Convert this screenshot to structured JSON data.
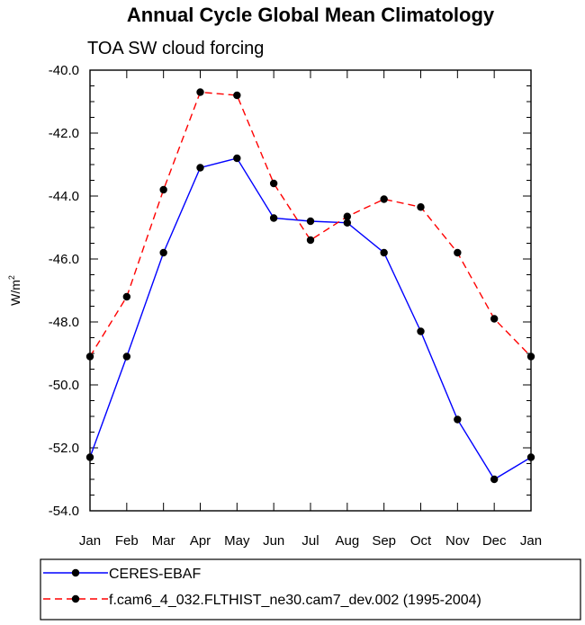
{
  "chart_data": {
    "type": "line",
    "title": "Annual Cycle Global Mean Climatology",
    "subtitle": "TOA SW cloud forcing",
    "ylabel": "W/m",
    "ylabel_sup": "2",
    "xlabel": "",
    "categories": [
      "Jan",
      "Feb",
      "Mar",
      "Apr",
      "May",
      "Jun",
      "Jul",
      "Aug",
      "Sep",
      "Oct",
      "Nov",
      "Dec",
      "Jan"
    ],
    "ylim": [
      -54.0,
      -40.0
    ],
    "yticks": [
      -54.0,
      -52.0,
      -50.0,
      -48.0,
      -46.0,
      -44.0,
      -42.0,
      -40.0
    ],
    "ytick_labels": [
      "-54.0",
      "-52.0",
      "-50.0",
      "-48.0",
      "-46.0",
      "-44.0",
      "-42.0",
      "-40.0"
    ],
    "grid": false,
    "legend_position": "bottom-left, outside plot",
    "series": [
      {
        "name": "CERES-EBAF",
        "color": "#0000ff",
        "line_style": "solid",
        "marker": "filled-circle",
        "values": [
          -52.3,
          -49.1,
          -45.8,
          -43.1,
          -42.8,
          -44.7,
          -44.8,
          -44.85,
          -45.8,
          -48.3,
          -51.1,
          -53.0,
          -52.3
        ]
      },
      {
        "name": "f.cam6_4_032.FLTHIST_ne30.cam7_dev.002 (1995-2004)",
        "color": "#ff0000",
        "line_style": "dashed",
        "marker": "filled-circle",
        "values": [
          -49.1,
          -47.2,
          -43.8,
          -40.7,
          -40.8,
          -43.6,
          -45.4,
          -44.65,
          -44.1,
          -44.35,
          -45.8,
          -47.9,
          -49.1
        ]
      }
    ]
  }
}
